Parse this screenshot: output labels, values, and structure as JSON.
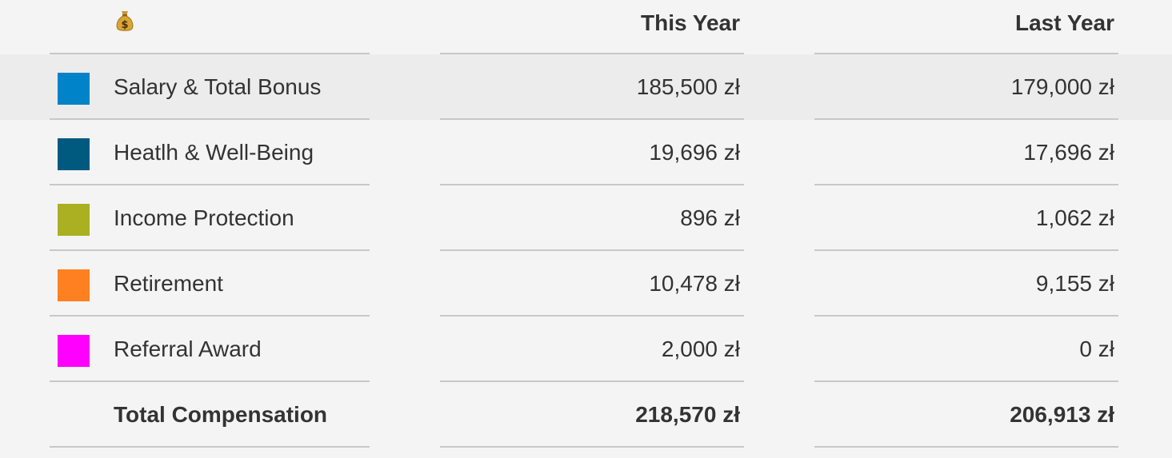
{
  "header": {
    "icon": "money-bag-icon",
    "this_year": "This Year",
    "last_year": "Last Year"
  },
  "rows": [
    {
      "label": "Salary & Total Bonus",
      "color": "#0083c9",
      "this_year": "185,500 zł",
      "last_year": "179,000 zł"
    },
    {
      "label": "Heatlh & Well-Being",
      "color": "#005a80",
      "this_year": "19,696 zł",
      "last_year": "17,696 zł"
    },
    {
      "label": "Income Protection",
      "color": "#aab022",
      "this_year": "896 zł",
      "last_year": "1,062 zł"
    },
    {
      "label": "Retirement",
      "color": "#ff8021",
      "this_year": "10,478 zł",
      "last_year": "9,155 zł"
    },
    {
      "label": "Referral Award",
      "color": "#ff00ff",
      "this_year": "2,000 zł",
      "last_year": "0 zł"
    }
  ],
  "total": {
    "label": "Total Compensation",
    "this_year": "218,570 zł",
    "last_year": "206,913 zł"
  }
}
